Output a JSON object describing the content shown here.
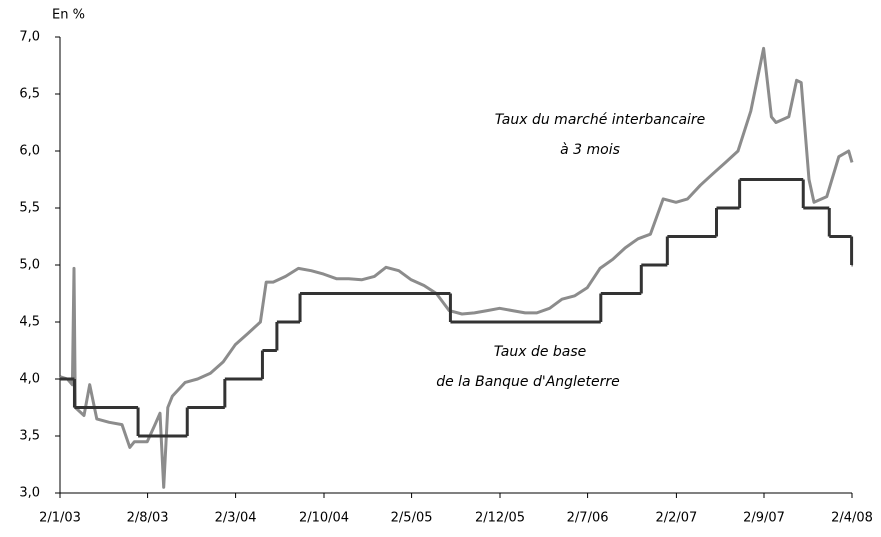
{
  "chart_data": {
    "type": "line",
    "y_unit_label": "En %",
    "annotations": [
      "Taux du marché interbancaire",
      "à 3 mois",
      "Taux de base",
      "de la Banque d'Angleterre"
    ],
    "xlim": [
      "2003-01-02",
      "2008-04-02"
    ],
    "xticks": [
      {
        "value": "2003-01-02",
        "label": "2/1/03"
      },
      {
        "value": "2003-08-02",
        "label": "2/8/03"
      },
      {
        "value": "2004-03-02",
        "label": "2/3/04"
      },
      {
        "value": "2004-10-02",
        "label": "2/10/04"
      },
      {
        "value": "2005-05-02",
        "label": "2/5/05"
      },
      {
        "value": "2005-12-02",
        "label": "2/12/05"
      },
      {
        "value": "2006-07-02",
        "label": "2/7/06"
      },
      {
        "value": "2007-02-02",
        "label": "2/2/07"
      },
      {
        "value": "2007-09-02",
        "label": "2/9/07"
      },
      {
        "value": "2008-04-02",
        "label": "2/4/08"
      }
    ],
    "ylim": [
      3,
      7
    ],
    "yticks": [
      {
        "value": 3,
        "label": "3,0"
      },
      {
        "value": 3.5,
        "label": "3,5"
      },
      {
        "value": 4,
        "label": "4,0"
      },
      {
        "value": 4.5,
        "label": "4,5"
      },
      {
        "value": 5,
        "label": "5,0"
      },
      {
        "value": 5.5,
        "label": "5,5"
      },
      {
        "value": 6,
        "label": "6,0"
      },
      {
        "value": 6.5,
        "label": "6,5"
      },
      {
        "value": 7,
        "label": "7,0"
      }
    ],
    "series": [
      {
        "color": "#8c8c8c",
        "style": "line",
        "x": [
          "2003-01-02",
          "2003-01-20",
          "2003-02-01",
          "2003-02-05",
          "2003-02-08",
          "2003-03-01",
          "2003-03-15",
          "2003-04-01",
          "2003-05-01",
          "2003-06-01",
          "2003-06-20",
          "2003-07-01",
          "2003-08-01",
          "2003-08-20",
          "2003-09-01",
          "2003-09-10",
          "2003-09-20",
          "2003-10-01",
          "2003-11-01",
          "2003-12-01",
          "2004-01-01",
          "2004-02-01",
          "2004-03-01",
          "2004-04-01",
          "2004-05-01",
          "2004-05-15",
          "2004-06-01",
          "2004-07-01",
          "2004-08-01",
          "2004-09-01",
          "2004-10-01",
          "2004-11-01",
          "2004-12-01",
          "2005-01-01",
          "2005-02-01",
          "2005-03-01",
          "2005-04-01",
          "2005-05-01",
          "2005-06-01",
          "2005-07-01",
          "2005-08-01",
          "2005-09-01",
          "2005-10-01",
          "2005-11-01",
          "2005-12-01",
          "2006-01-01",
          "2006-02-01",
          "2006-03-01",
          "2006-04-01",
          "2006-05-01",
          "2006-06-01",
          "2006-07-01",
          "2006-08-01",
          "2006-09-01",
          "2006-10-01",
          "2006-11-01",
          "2006-12-01",
          "2007-01-01",
          "2007-02-01",
          "2007-03-01",
          "2007-04-01",
          "2007-05-01",
          "2007-06-01",
          "2007-07-01",
          "2007-08-01",
          "2007-09-01",
          "2007-09-20",
          "2007-10-01",
          "2007-11-01",
          "2007-11-20",
          "2007-12-01",
          "2007-12-20",
          "2008-01-01",
          "2008-02-01",
          "2008-03-01",
          "2008-03-25",
          "2008-04-02"
        ],
        "values": [
          4.02,
          4.0,
          3.95,
          4.97,
          3.75,
          3.68,
          3.95,
          3.65,
          3.62,
          3.6,
          3.4,
          3.45,
          3.45,
          3.6,
          3.7,
          3.05,
          3.75,
          3.85,
          3.97,
          4.0,
          4.05,
          4.15,
          4.3,
          4.4,
          4.5,
          4.85,
          4.85,
          4.9,
          4.97,
          4.95,
          4.92,
          4.88,
          4.88,
          4.87,
          4.9,
          4.98,
          4.95,
          4.87,
          4.82,
          4.75,
          4.6,
          4.57,
          4.58,
          4.6,
          4.62,
          4.6,
          4.58,
          4.58,
          4.62,
          4.7,
          4.73,
          4.8,
          4.97,
          5.05,
          5.15,
          5.23,
          5.27,
          5.58,
          5.55,
          5.58,
          5.7,
          5.8,
          5.9,
          6.0,
          6.35,
          6.9,
          6.3,
          6.25,
          6.3,
          6.62,
          6.6,
          5.75,
          5.55,
          5.6,
          5.95,
          6.0,
          5.9
        ]
      },
      {
        "color": "#333333",
        "style": "step",
        "x": [
          "2003-01-02",
          "2003-02-06",
          "2003-07-10",
          "2003-11-06",
          "2004-02-05",
          "2004-05-06",
          "2004-06-10",
          "2004-08-05",
          "2005-08-04",
          "2006-08-03",
          "2006-11-09",
          "2007-01-11",
          "2007-05-10",
          "2007-07-05",
          "2007-12-06",
          "2008-02-07",
          "2008-04-01"
        ],
        "values": [
          4.0,
          3.75,
          3.5,
          3.75,
          4.0,
          4.25,
          4.5,
          4.75,
          4.5,
          4.75,
          5.0,
          5.25,
          5.5,
          5.75,
          5.5,
          5.25,
          5.0
        ]
      }
    ]
  }
}
